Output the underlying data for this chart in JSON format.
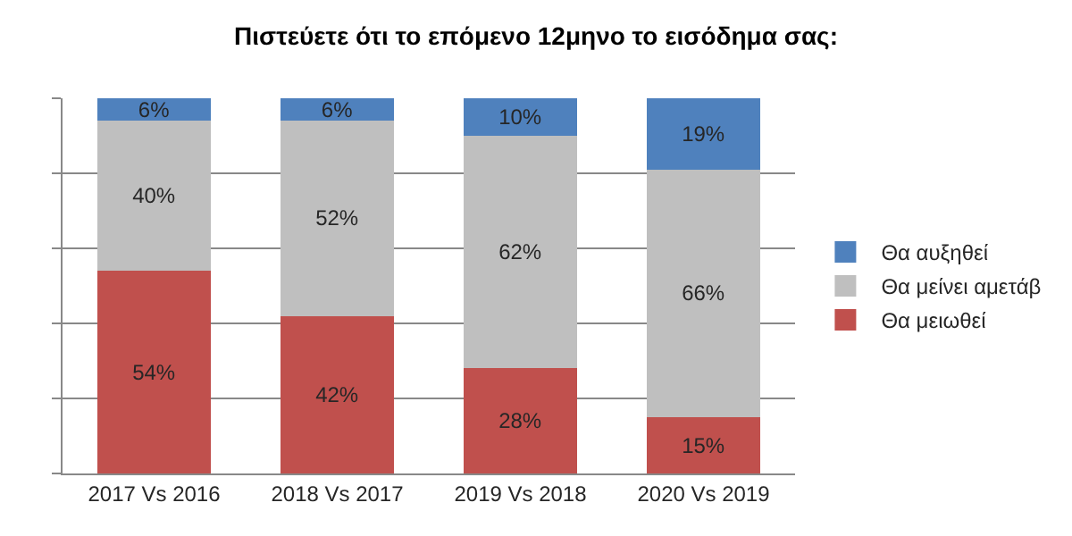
{
  "chart_data": {
    "type": "bar",
    "title": "Πιστεύετε ότι το επόμενο 12μηνο το εισόδημα σας:",
    "categories": [
      "2017 Vs 2016",
      "2018 Vs 2017",
      "2019 Vs 2018",
      "2020 Vs 2019"
    ],
    "stacked": true,
    "series": [
      {
        "name": "Θα μειωθεί",
        "color": "#c0504d",
        "values": [
          54,
          42,
          28,
          15
        ],
        "value_labels": [
          "54%",
          "42%",
          "28%",
          "15%"
        ]
      },
      {
        "name": "Θα μείνει αμετάβ",
        "color": "#bfbfbf",
        "values": [
          40,
          52,
          62,
          66
        ],
        "value_labels": [
          "40%",
          "52%",
          "62%",
          "66%"
        ]
      },
      {
        "name": "Θα αυξηθεί",
        "color": "#4f81bd",
        "values": [
          6,
          6,
          10,
          19
        ],
        "value_labels": [
          "6%",
          "6%",
          "10%",
          "19%"
        ]
      }
    ],
    "ylim": [
      0,
      100
    ],
    "yticks": [
      {
        "value": 0,
        "label": null
      },
      {
        "value": 20,
        "label": null
      },
      {
        "value": 40,
        "label": null
      },
      {
        "value": 60,
        "label": null
      },
      {
        "value": 80,
        "label": null
      },
      {
        "value": 100,
        "label": null
      }
    ],
    "tick_labels": "x",
    "grid": "y",
    "legend": "right"
  }
}
